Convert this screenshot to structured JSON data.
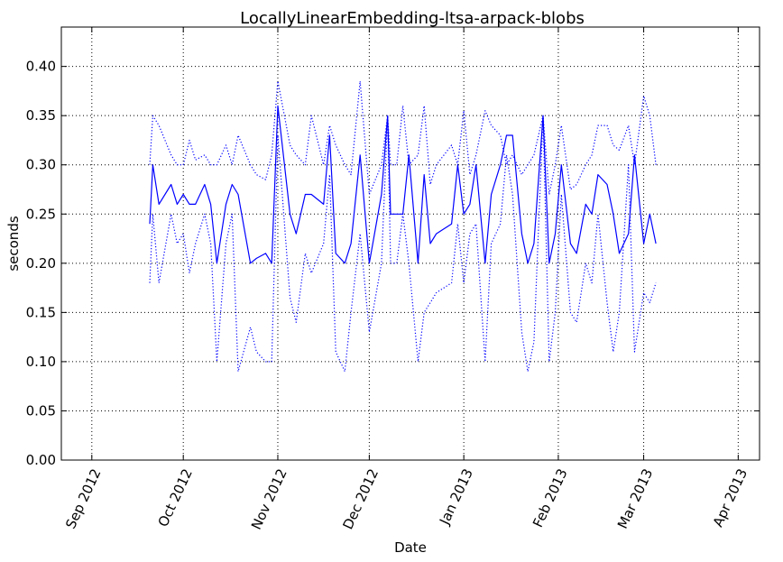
{
  "chart_data": {
    "type": "line",
    "title": "LocallyLinearEmbedding-ltsa-arpack-blobs",
    "xlabel": "Date",
    "ylabel": "seconds",
    "xlim": [
      "2012-08-22",
      "2013-04-08"
    ],
    "ylim": [
      0,
      0.44
    ],
    "grid": true,
    "x_ticks": [
      {
        "date": "2012-09-01",
        "label": "Sep 2012"
      },
      {
        "date": "2012-10-01",
        "label": "Oct 2012"
      },
      {
        "date": "2012-11-01",
        "label": "Nov 2012"
      },
      {
        "date": "2012-12-01",
        "label": "Dec 2012"
      },
      {
        "date": "2013-01-01",
        "label": "Jan 2013"
      },
      {
        "date": "2013-02-01",
        "label": "Feb 2013"
      },
      {
        "date": "2013-03-01",
        "label": "Mar 2013"
      },
      {
        "date": "2013-04-01",
        "label": "Apr 2013"
      }
    ],
    "y_ticks": [
      0.0,
      0.05,
      0.1,
      0.15,
      0.2,
      0.25,
      0.3,
      0.35,
      0.4
    ],
    "y_tick_labels": [
      "0.00",
      "0.05",
      "0.10",
      "0.15",
      "0.20",
      "0.25",
      "0.30",
      "0.35",
      "0.40"
    ],
    "series": [
      {
        "style": "solid",
        "color": "#0000ff",
        "x": [
          "2012-09-20",
          "2012-09-21",
          "2012-09-23",
          "2012-09-27",
          "2012-09-29",
          "2012-10-01",
          "2012-10-03",
          "2012-10-05",
          "2012-10-08",
          "2012-10-10",
          "2012-10-12",
          "2012-10-15",
          "2012-10-17",
          "2012-10-19",
          "2012-10-23",
          "2012-10-25",
          "2012-10-28",
          "2012-10-30",
          "2012-11-01",
          "2012-11-05",
          "2012-11-07",
          "2012-11-10",
          "2012-11-12",
          "2012-11-16",
          "2012-11-18",
          "2012-11-20",
          "2012-11-23",
          "2012-11-25",
          "2012-11-28",
          "2012-12-01",
          "2012-12-05",
          "2012-12-07",
          "2012-12-08",
          "2012-12-10",
          "2012-12-12",
          "2012-12-14",
          "2012-12-17",
          "2012-12-19",
          "2012-12-21",
          "2012-12-23",
          "2012-12-28",
          "2012-12-30",
          "2013-01-01",
          "2013-01-03",
          "2013-01-05",
          "2013-01-08",
          "2013-01-10",
          "2013-01-13",
          "2013-01-15",
          "2013-01-17",
          "2013-01-20",
          "2013-01-22",
          "2013-01-24",
          "2013-01-27",
          "2013-01-29",
          "2013-01-31",
          "2013-02-02",
          "2013-02-05",
          "2013-02-07",
          "2013-02-10",
          "2013-02-12",
          "2013-02-14",
          "2013-02-17",
          "2013-02-19",
          "2013-02-21",
          "2013-02-24",
          "2013-02-26",
          "2013-03-01",
          "2013-03-03",
          "2013-03-05"
        ],
        "y": [
          0.24,
          0.3,
          0.26,
          0.28,
          0.26,
          0.27,
          0.26,
          0.26,
          0.28,
          0.26,
          0.2,
          0.26,
          0.28,
          0.27,
          0.2,
          0.205,
          0.21,
          0.2,
          0.36,
          0.25,
          0.23,
          0.27,
          0.27,
          0.26,
          0.33,
          0.21,
          0.2,
          0.22,
          0.31,
          0.2,
          0.27,
          0.35,
          0.25,
          0.25,
          0.25,
          0.31,
          0.2,
          0.29,
          0.22,
          0.23,
          0.24,
          0.3,
          0.25,
          0.26,
          0.3,
          0.2,
          0.27,
          0.3,
          0.33,
          0.33,
          0.23,
          0.2,
          0.22,
          0.35,
          0.2,
          0.23,
          0.3,
          0.22,
          0.21,
          0.26,
          0.25,
          0.29,
          0.28,
          0.25,
          0.21,
          0.23,
          0.31,
          0.22,
          0.25,
          0.22
        ]
      },
      {
        "style": "dotted",
        "color": "#0000ff",
        "x": [
          "2012-09-20",
          "2012-09-21",
          "2012-09-23",
          "2012-09-27",
          "2012-09-29",
          "2012-10-01",
          "2012-10-03",
          "2012-10-05",
          "2012-10-08",
          "2012-10-10",
          "2012-10-12",
          "2012-10-15",
          "2012-10-17",
          "2012-10-19",
          "2012-10-23",
          "2012-10-25",
          "2012-10-28",
          "2012-10-30",
          "2012-11-01",
          "2012-11-05",
          "2012-11-07",
          "2012-11-10",
          "2012-11-12",
          "2012-11-16",
          "2012-11-18",
          "2012-11-20",
          "2012-11-23",
          "2012-11-25",
          "2012-11-28",
          "2012-12-01",
          "2012-12-05",
          "2012-12-07",
          "2012-12-08",
          "2012-12-10",
          "2012-12-12",
          "2012-12-14",
          "2012-12-17",
          "2012-12-19",
          "2012-12-21",
          "2012-12-23",
          "2012-12-28",
          "2012-12-30",
          "2013-01-01",
          "2013-01-03",
          "2013-01-05",
          "2013-01-08",
          "2013-01-10",
          "2013-01-13",
          "2013-01-15",
          "2013-01-17",
          "2013-01-20",
          "2013-01-22",
          "2013-01-24",
          "2013-01-27",
          "2013-01-29",
          "2013-01-31",
          "2013-02-02",
          "2013-02-05",
          "2013-02-07",
          "2013-02-10",
          "2013-02-12",
          "2013-02-14",
          "2013-02-17",
          "2013-02-19",
          "2013-02-21",
          "2013-02-24",
          "2013-02-26",
          "2013-03-01",
          "2013-03-03",
          "2013-03-05"
        ],
        "y": [
          0.3,
          0.35,
          0.34,
          0.31,
          0.3,
          0.3,
          0.325,
          0.305,
          0.31,
          0.3,
          0.3,
          0.32,
          0.3,
          0.33,
          0.3,
          0.29,
          0.285,
          0.31,
          0.385,
          0.32,
          0.31,
          0.3,
          0.35,
          0.3,
          0.34,
          0.32,
          0.3,
          0.29,
          0.385,
          0.27,
          0.3,
          0.35,
          0.3,
          0.3,
          0.36,
          0.3,
          0.31,
          0.36,
          0.28,
          0.3,
          0.32,
          0.3,
          0.355,
          0.29,
          0.31,
          0.355,
          0.34,
          0.33,
          0.3,
          0.31,
          0.29,
          0.3,
          0.31,
          0.35,
          0.27,
          0.3,
          0.34,
          0.275,
          0.28,
          0.3,
          0.31,
          0.34,
          0.34,
          0.32,
          0.315,
          0.34,
          0.3,
          0.37,
          0.35,
          0.3
        ]
      },
      {
        "style": "dotted",
        "color": "#0000ff",
        "x": [
          "2012-09-20",
          "2012-09-21",
          "2012-09-23",
          "2012-09-27",
          "2012-09-29",
          "2012-10-01",
          "2012-10-03",
          "2012-10-05",
          "2012-10-08",
          "2012-10-10",
          "2012-10-12",
          "2012-10-15",
          "2012-10-17",
          "2012-10-19",
          "2012-10-23",
          "2012-10-25",
          "2012-10-28",
          "2012-10-30",
          "2012-11-01",
          "2012-11-05",
          "2012-11-07",
          "2012-11-10",
          "2012-11-12",
          "2012-11-16",
          "2012-11-18",
          "2012-11-20",
          "2012-11-23",
          "2012-11-25",
          "2012-11-28",
          "2012-12-01",
          "2012-12-05",
          "2012-12-07",
          "2012-12-08",
          "2012-12-10",
          "2012-12-12",
          "2012-12-14",
          "2012-12-17",
          "2012-12-19",
          "2012-12-21",
          "2012-12-23",
          "2012-12-28",
          "2012-12-30",
          "2013-01-01",
          "2013-01-03",
          "2013-01-05",
          "2013-01-08",
          "2013-01-10",
          "2013-01-13",
          "2013-01-15",
          "2013-01-17",
          "2013-01-20",
          "2013-01-22",
          "2013-01-24",
          "2013-01-27",
          "2013-01-29",
          "2013-01-31",
          "2013-02-02",
          "2013-02-05",
          "2013-02-07",
          "2013-02-10",
          "2013-02-12",
          "2013-02-14",
          "2013-02-17",
          "2013-02-19",
          "2013-02-21",
          "2013-02-24",
          "2013-02-26",
          "2013-03-01",
          "2013-03-03",
          "2013-03-05"
        ],
        "y": [
          0.18,
          0.25,
          0.18,
          0.25,
          0.22,
          0.23,
          0.19,
          0.22,
          0.25,
          0.22,
          0.1,
          0.22,
          0.25,
          0.09,
          0.135,
          0.11,
          0.1,
          0.1,
          0.33,
          0.165,
          0.14,
          0.21,
          0.19,
          0.22,
          0.29,
          0.11,
          0.09,
          0.15,
          0.23,
          0.13,
          0.2,
          0.35,
          0.2,
          0.2,
          0.25,
          0.2,
          0.1,
          0.15,
          0.16,
          0.17,
          0.18,
          0.24,
          0.18,
          0.23,
          0.24,
          0.1,
          0.22,
          0.24,
          0.31,
          0.27,
          0.13,
          0.09,
          0.12,
          0.35,
          0.1,
          0.15,
          0.27,
          0.15,
          0.14,
          0.2,
          0.18,
          0.25,
          0.16,
          0.11,
          0.15,
          0.3,
          0.11,
          0.17,
          0.16,
          0.18
        ]
      }
    ]
  }
}
